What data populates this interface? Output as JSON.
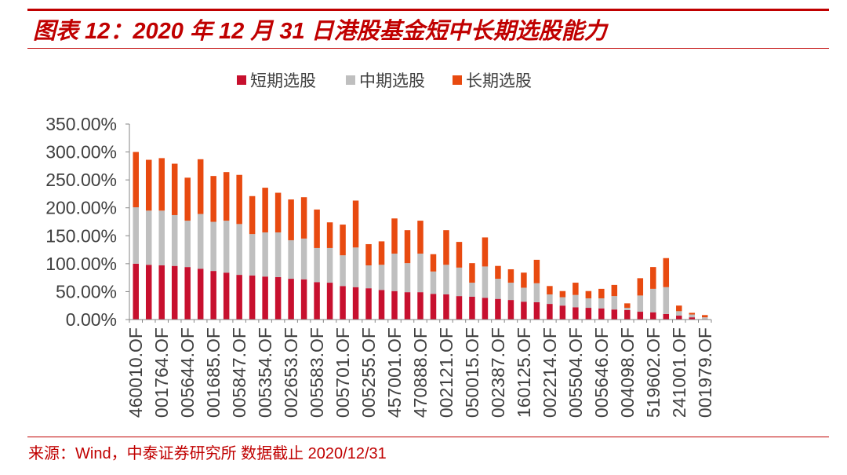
{
  "theme": {
    "accent": "#c00000",
    "axis": "#868686",
    "text": "#404040"
  },
  "chart_data": {
    "type": "bar",
    "stacked": true,
    "title": "图表 12：2020 年 12 月 31 日港股基金短中长期选股能力",
    "categories": [
      "460010.OF",
      "",
      "001764.OF",
      "",
      "005644.OF",
      "",
      "001685.OF",
      "",
      "005847.OF",
      "",
      "005354.OF",
      "",
      "002653.OF",
      "",
      "005583.OF",
      "",
      "005701.OF",
      "",
      "005255.OF",
      "",
      "457001.OF",
      "",
      "470888.OF",
      "",
      "002121.OF",
      "",
      "050015.OF",
      "",
      "002387.OF",
      "",
      "160125.OF",
      "",
      "002214.OF",
      "",
      "005504.OF",
      "",
      "005646.OF",
      "",
      "004098.OF",
      "",
      "519602.OF",
      "",
      "241001.OF",
      "",
      "001979.OF"
    ],
    "series": [
      {
        "name": "短期选股",
        "color": "#c7102e",
        "values": [
          100,
          98,
          97,
          96,
          94,
          91,
          87,
          84,
          80,
          79,
          77,
          76,
          73,
          72,
          67,
          66,
          60,
          58,
          56,
          53,
          51,
          49,
          49,
          46,
          45,
          42,
          41,
          39,
          37,
          35,
          32,
          31,
          28,
          25,
          22,
          21,
          20,
          18,
          17,
          14,
          13,
          10,
          7,
          4,
          1
        ]
      },
      {
        "name": "中期选股",
        "color": "#bfbfbf",
        "values": [
          101,
          97,
          98,
          91,
          83,
          98,
          88,
          93,
          91,
          74,
          79,
          80,
          69,
          73,
          61,
          62,
          55,
          71,
          41,
          45,
          67,
          52,
          69,
          40,
          53,
          51,
          25,
          56,
          36,
          31,
          25,
          34,
          17,
          15,
          22,
          17,
          18,
          24,
          4,
          29,
          42,
          48,
          8,
          5,
          3
        ]
      },
      {
        "name": "长期选股",
        "color": "#e84a10",
        "values": [
          99,
          91,
          94,
          92,
          77,
          98,
          82,
          87,
          88,
          68,
          80,
          71,
          73,
          74,
          69,
          46,
          55,
          84,
          38,
          42,
          63,
          59,
          59,
          31,
          62,
          46,
          35,
          52,
          23,
          24,
          27,
          42,
          15,
          11,
          22,
          13,
          17,
          20,
          8,
          31,
          39,
          52,
          10,
          3,
          4
        ]
      }
    ],
    "ylim": [
      0,
      350
    ],
    "yticks": [
      0,
      50,
      100,
      150,
      200,
      250,
      300,
      350
    ],
    "ytick_labels": [
      "0.00%",
      "50.00%",
      "100.00%",
      "150.00%",
      "200.00%",
      "250.00%",
      "300.00%",
      "350.00%"
    ],
    "grid": false,
    "legend": "top-center"
  },
  "footer": {
    "source": "来源：Wind，中泰证券研究所 数据截止 2020/12/31"
  }
}
